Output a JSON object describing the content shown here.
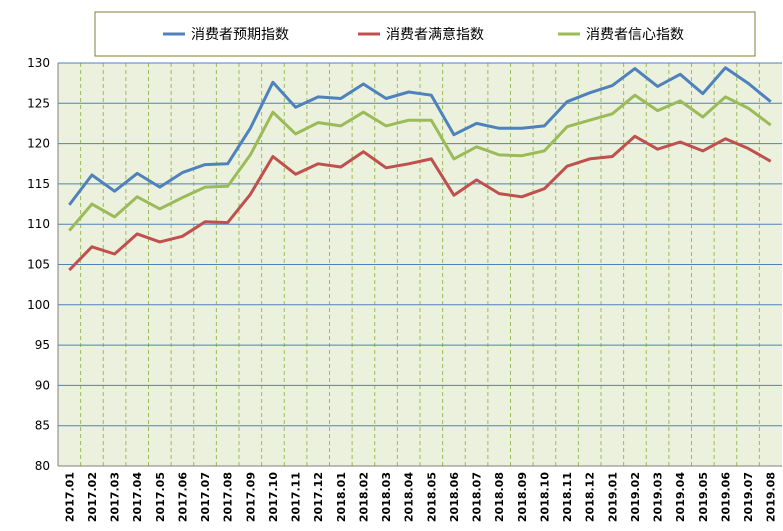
{
  "chart_data": {
    "type": "line",
    "title": "",
    "xlabel": "",
    "ylabel": "",
    "ylim": [
      80,
      130
    ],
    "yticks": [
      80,
      85,
      90,
      95,
      100,
      105,
      110,
      115,
      120,
      125,
      130
    ],
    "grid": true,
    "legend_position": "top",
    "categories": [
      "2017.01",
      "2017.02",
      "2017.03",
      "2017.04",
      "2017.05",
      "2017.06",
      "2017.07",
      "2017.08",
      "2017.09",
      "2017.10",
      "2017.11",
      "2017.12",
      "2018.01",
      "2018.02",
      "2018.03",
      "2018.04",
      "2018.05",
      "2018.06",
      "2018.07",
      "2018.08",
      "2018.09",
      "2018.10",
      "2018.11",
      "2018.12",
      "2019.01",
      "2019.02",
      "2019.03",
      "2019.04",
      "2019.05",
      "2019.06",
      "2019.07",
      "2019.08"
    ],
    "series": [
      {
        "name": "消费者预期指数",
        "color": "#4f81bd",
        "values": [
          112.4,
          116.1,
          114.1,
          116.3,
          114.6,
          116.4,
          117.4,
          117.5,
          121.9,
          127.6,
          124.5,
          125.8,
          125.6,
          127.4,
          125.6,
          126.4,
          126.0,
          121.1,
          122.5,
          121.9,
          121.9,
          122.2,
          125.2,
          126.3,
          127.2,
          129.3,
          127.1,
          128.6,
          126.2,
          129.4,
          127.5,
          125.2
        ]
      },
      {
        "name": "消费者满意指数",
        "color": "#c0504d",
        "values": [
          104.3,
          107.2,
          106.3,
          108.8,
          107.8,
          108.5,
          110.3,
          110.2,
          113.7,
          118.4,
          116.2,
          117.5,
          117.1,
          119.0,
          117.0,
          117.5,
          118.1,
          113.6,
          115.5,
          113.8,
          113.4,
          114.4,
          117.2,
          118.1,
          118.4,
          120.9,
          119.3,
          120.2,
          119.1,
          120.6,
          119.4,
          117.8
        ]
      },
      {
        "name": "消费者信心指数",
        "color": "#9bbb59",
        "values": [
          109.2,
          112.5,
          110.9,
          113.4,
          111.9,
          113.3,
          114.6,
          114.7,
          118.6,
          123.9,
          121.2,
          122.6,
          122.2,
          123.9,
          122.2,
          122.9,
          122.9,
          118.1,
          119.6,
          118.6,
          118.5,
          119.1,
          122.1,
          122.9,
          123.7,
          126.0,
          124.1,
          125.3,
          123.3,
          125.8,
          124.4,
          122.3
        ]
      }
    ]
  }
}
